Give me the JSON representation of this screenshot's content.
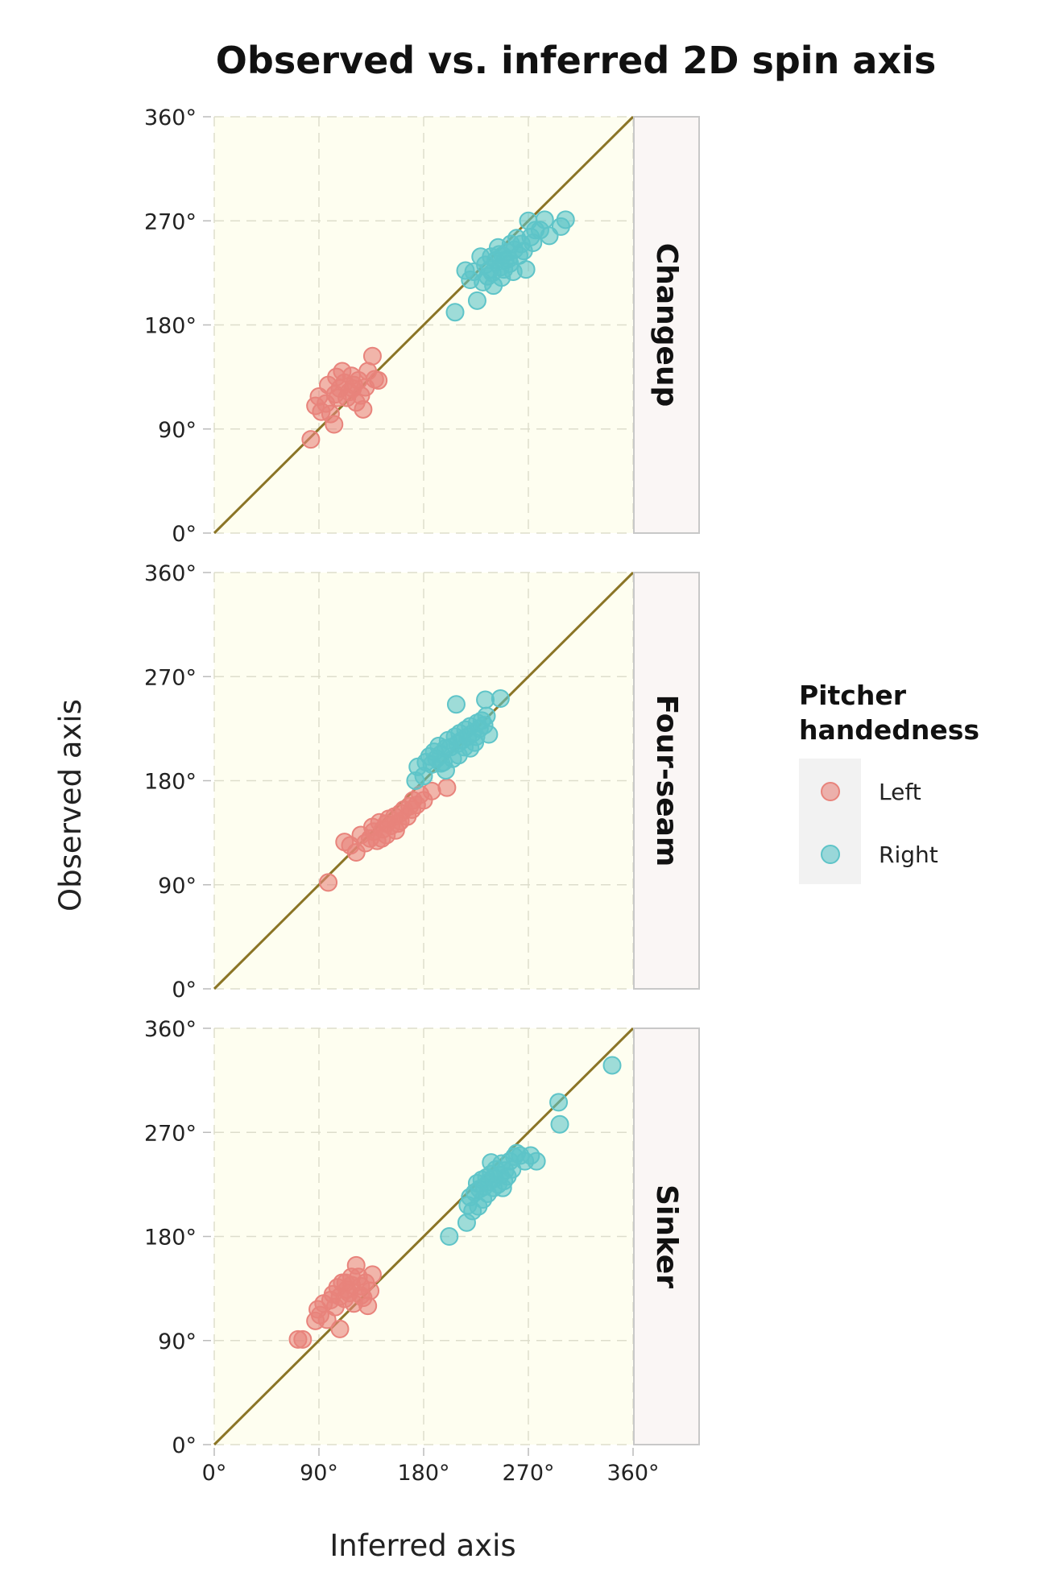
{
  "chart_data": {
    "type": "scatter",
    "title": "Observed vs. inferred 2D spin axis",
    "xlabel": "Inferred axis",
    "ylabel": "Observed axis",
    "xlim": [
      0,
      360
    ],
    "ylim": [
      0,
      360
    ],
    "ticks": [
      0,
      90,
      180,
      270,
      360
    ],
    "tick_labels": [
      "0°",
      "90°",
      "180°",
      "270°",
      "360°"
    ],
    "grid": true,
    "reference_line": "y = x",
    "legend": {
      "title_lines": [
        "Pitcher",
        "handedness"
      ],
      "position": "right",
      "entries": [
        {
          "name": "Left",
          "color": "#E8837B"
        },
        {
          "name": "Right",
          "color": "#5EC4C8"
        }
      ]
    },
    "colors": {
      "panel_bg": "#FEFEF0",
      "grid": "#DDDDCC",
      "reference_line": "#8B7526",
      "strip_bg": "#FAF6F5",
      "strip_border": "#C8C8C8",
      "legend_key_bg": "#F2F2F2",
      "left": "#E8837B",
      "right": "#5EC4C8"
    },
    "panels": [
      {
        "name": "Changeup",
        "series": [
          {
            "name": "Left",
            "points": [
              [
                83,
                81
              ],
              [
                87,
                110
              ],
              [
                92,
                105
              ],
              [
                90,
                118
              ],
              [
                96,
                112
              ],
              [
                98,
                128
              ],
              [
                100,
                103
              ],
              [
                104,
                120
              ],
              [
                105,
                135
              ],
              [
                103,
                94
              ],
              [
                108,
                125
              ],
              [
                110,
                140
              ],
              [
                112,
                130
              ],
              [
                114,
                117
              ],
              [
                116,
                122
              ],
              [
                118,
                136
              ],
              [
                120,
                128
              ],
              [
                122,
                113
              ],
              [
                124,
                132
              ],
              [
                126,
                119
              ],
              [
                130,
                126
              ],
              [
                132,
                140
              ],
              [
                128,
                107
              ],
              [
                136,
                153
              ],
              [
                138,
                133
              ],
              [
                141,
                132
              ],
              [
                119,
                125
              ],
              [
                106,
                117
              ]
            ]
          },
          {
            "name": "Right",
            "points": [
              [
                207,
                191
              ],
              [
                216,
                227
              ],
              [
                220,
                219
              ],
              [
                223,
                226
              ],
              [
                226,
                201
              ],
              [
                229,
                239
              ],
              [
                231,
                217
              ],
              [
                233,
                232
              ],
              [
                235,
                222
              ],
              [
                237,
                228
              ],
              [
                238,
                239
              ],
              [
                240,
                214
              ],
              [
                242,
                236
              ],
              [
                244,
                247
              ],
              [
                246,
                230
              ],
              [
                247,
                221
              ],
              [
                248,
                240
              ],
              [
                250,
                236
              ],
              [
                252,
                243
              ],
              [
                254,
                233
              ],
              [
                255,
                250
              ],
              [
                257,
                226
              ],
              [
                258,
                245
              ],
              [
                260,
                255
              ],
              [
                262,
                240
              ],
              [
                264,
                250
              ],
              [
                266,
                244
              ],
              [
                268,
                228
              ],
              [
                270,
                270
              ],
              [
                272,
                256
              ],
              [
                274,
                251
              ],
              [
                276,
                262
              ],
              [
                280,
                262
              ],
              [
                284,
                271
              ],
              [
                288,
                257
              ],
              [
                298,
                265
              ],
              [
                302,
                271
              ],
              [
                253,
                237
              ],
              [
                245,
                241
              ],
              [
                239,
                225
              ],
              [
                249,
                228
              ]
            ]
          }
        ]
      },
      {
        "name": "Four-seam",
        "series": [
          {
            "name": "Left",
            "points": [
              [
                98,
                92
              ],
              [
                112,
                127
              ],
              [
                117,
                124
              ],
              [
                122,
                118
              ],
              [
                126,
                133
              ],
              [
                130,
                126
              ],
              [
                134,
                130
              ],
              [
                137,
                136
              ],
              [
                140,
                128
              ],
              [
                142,
                144
              ],
              [
                145,
                138
              ],
              [
                148,
                133
              ],
              [
                150,
                147
              ],
              [
                152,
                141
              ],
              [
                155,
                149
              ],
              [
                158,
                143
              ],
              [
                160,
                152
              ],
              [
                163,
                155
              ],
              [
                166,
                149
              ],
              [
                168,
                158
              ],
              [
                171,
                163
              ],
              [
                174,
                159
              ],
              [
                177,
                168
              ],
              [
                180,
                163
              ],
              [
                187,
                171
              ],
              [
                200,
                174
              ],
              [
                144,
                130
              ],
              [
                136,
                140
              ],
              [
                160,
                145
              ],
              [
                156,
                137
              ],
              [
                170,
                155
              ],
              [
                148,
                143
              ]
            ]
          },
          {
            "name": "Right",
            "points": [
              [
                173,
                180
              ],
              [
                175,
                192
              ],
              [
                180,
                184
              ],
              [
                182,
                196
              ],
              [
                185,
                201
              ],
              [
                187,
                194
              ],
              [
                189,
                205
              ],
              [
                191,
                199
              ],
              [
                193,
                210
              ],
              [
                195,
                203
              ],
              [
                197,
                196
              ],
              [
                199,
                208
              ],
              [
                201,
                215
              ],
              [
                203,
                209
              ],
              [
                205,
                199
              ],
              [
                207,
                218
              ],
              [
                209,
                212
              ],
              [
                211,
                221
              ],
              [
                213,
                215
              ],
              [
                215,
                209
              ],
              [
                216,
                224
              ],
              [
                218,
                218
              ],
              [
                220,
                227
              ],
              [
                222,
                221
              ],
              [
                224,
                213
              ],
              [
                226,
                230
              ],
              [
                228,
                225
              ],
              [
                230,
                232
              ],
              [
                232,
                228
              ],
              [
                234,
                236
              ],
              [
                236,
                220
              ],
              [
                208,
                246
              ],
              [
                233,
                250
              ],
              [
                246,
                251
              ],
              [
                199,
                189
              ],
              [
                210,
                202
              ],
              [
                225,
                218
              ],
              [
                220,
                208
              ],
              [
                195,
                195
              ]
            ]
          }
        ]
      },
      {
        "name": "Sinker",
        "series": [
          {
            "name": "Left",
            "points": [
              [
                72,
                91
              ],
              [
                76,
                91
              ],
              [
                87,
                107
              ],
              [
                89,
                117
              ],
              [
                91,
                112
              ],
              [
                94,
                122
              ],
              [
                97,
                108
              ],
              [
                100,
                125
              ],
              [
                102,
                130
              ],
              [
                104,
                119
              ],
              [
                106,
                136
              ],
              [
                108,
                128
              ],
              [
                108,
                100
              ],
              [
                110,
                140
              ],
              [
                112,
                126
              ],
              [
                114,
                134
              ],
              [
                116,
                131
              ],
              [
                118,
                138
              ],
              [
                120,
                122
              ],
              [
                122,
                155
              ],
              [
                124,
                145
              ],
              [
                126,
                129
              ],
              [
                128,
                127
              ],
              [
                130,
                140
              ],
              [
                132,
                120
              ],
              [
                134,
                133
              ],
              [
                136,
                147
              ],
              [
                126,
                137
              ],
              [
                118,
                145
              ],
              [
                113,
                140
              ]
            ]
          },
          {
            "name": "Right",
            "points": [
              [
                202,
                180
              ],
              [
                217,
                192
              ],
              [
                218,
                207
              ],
              [
                220,
                214
              ],
              [
                222,
                202
              ],
              [
                224,
                218
              ],
              [
                226,
                226
              ],
              [
                227,
                206
              ],
              [
                228,
                221
              ],
              [
                230,
                229
              ],
              [
                231,
                212
              ],
              [
                232,
                223
              ],
              [
                234,
                231
              ],
              [
                235,
                217
              ],
              [
                236,
                227
              ],
              [
                238,
                234
              ],
              [
                240,
                222
              ],
              [
                241,
                230
              ],
              [
                242,
                238
              ],
              [
                244,
                225
              ],
              [
                246,
                233
              ],
              [
                247,
                243
              ],
              [
                249,
                228
              ],
              [
                250,
                237
              ],
              [
                252,
                232
              ],
              [
                254,
                245
              ],
              [
                256,
                238
              ],
              [
                258,
                249
              ],
              [
                260,
                252
              ],
              [
                263,
                250
              ],
              [
                267,
                245
              ],
              [
                272,
                250
              ],
              [
                277,
                245
              ],
              [
                296,
                296
              ],
              [
                297,
                277
              ],
              [
                342,
                328
              ],
              [
                248,
                222
              ],
              [
                238,
                244
              ]
            ]
          }
        ]
      }
    ]
  }
}
